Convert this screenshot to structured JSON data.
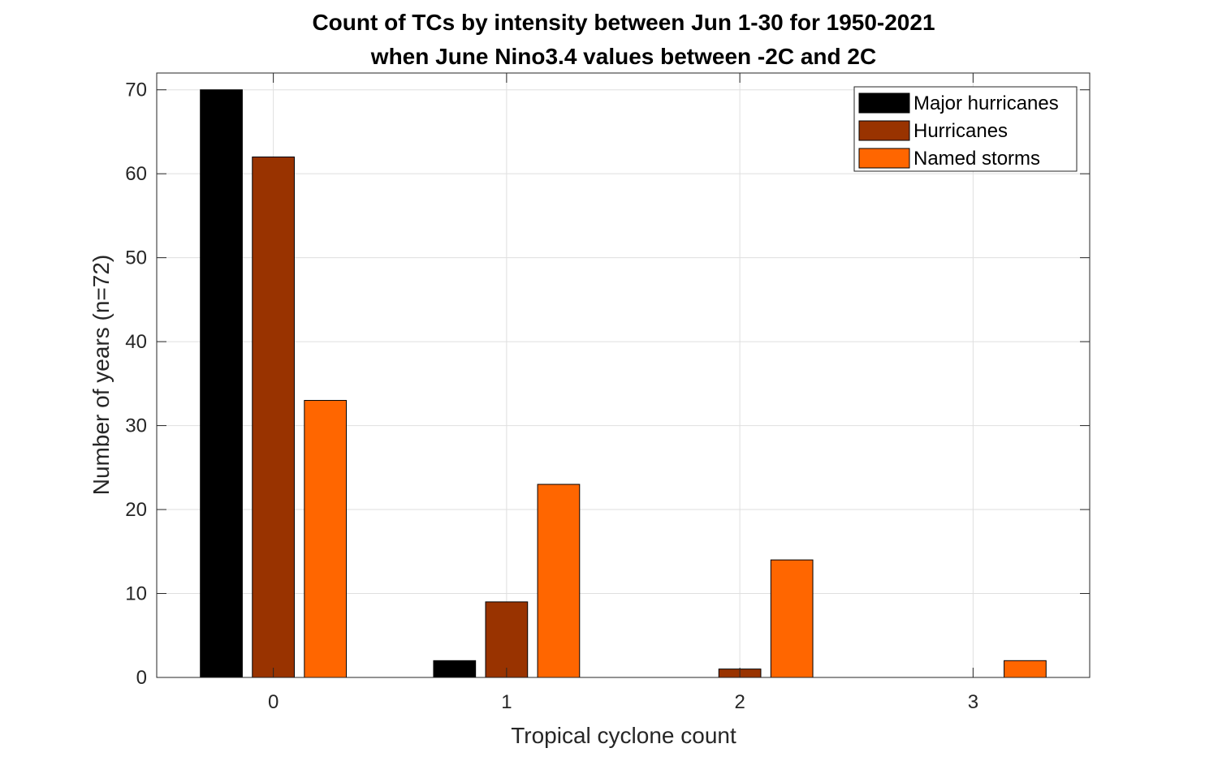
{
  "chart_data": {
    "type": "bar",
    "title_lines": [
      "Count of TCs by intensity between Jun 1-30 for 1950-2021",
      "when June Nino3.4 values between -2C and 2C"
    ],
    "xlabel": "Tropical cyclone count",
    "ylabel": "Number of years (n=72)",
    "categories": [
      "0",
      "1",
      "2",
      "3"
    ],
    "x": [
      0,
      1,
      2,
      3
    ],
    "xlim": [
      -0.5,
      3.5
    ],
    "ylim": [
      0,
      72
    ],
    "yticks": [
      0,
      10,
      20,
      30,
      40,
      50,
      60,
      70
    ],
    "grid": true,
    "legend_position": "top-right",
    "series": [
      {
        "name": "Major hurricanes",
        "color": "#000000",
        "values": [
          70,
          2,
          0,
          0
        ]
      },
      {
        "name": "Hurricanes",
        "color": "#993300",
        "values": [
          62,
          9,
          1,
          0
        ]
      },
      {
        "name": "Named storms",
        "color": "#FF6600",
        "values": [
          33,
          23,
          14,
          2
        ]
      }
    ]
  }
}
